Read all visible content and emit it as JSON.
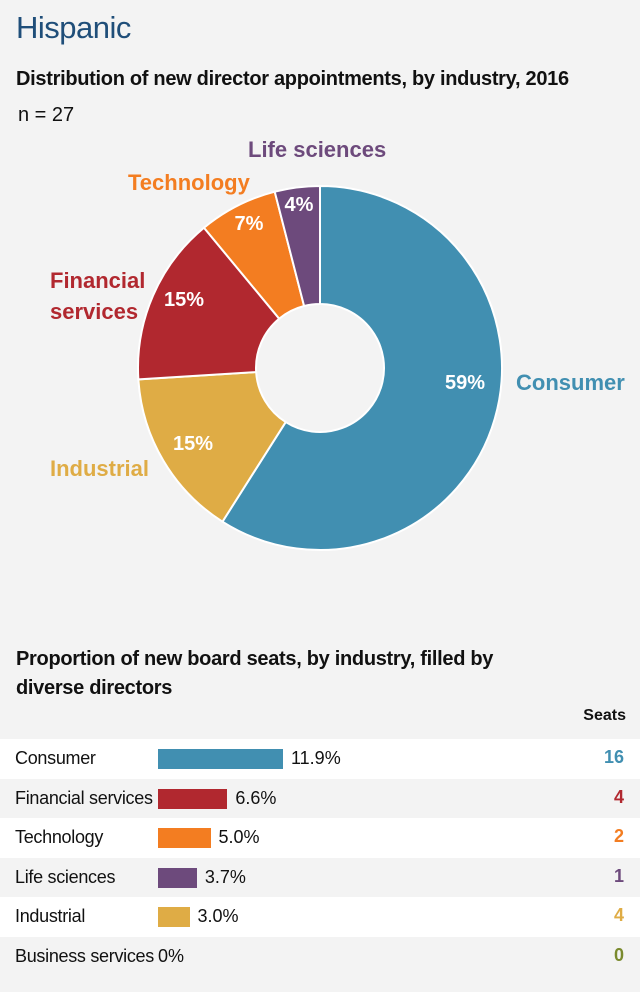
{
  "title": "Hispanic",
  "chart_data": [
    {
      "type": "pie",
      "title": "Distribution of new director appointments, by industry, 2016",
      "subtitle": "n = 27",
      "donut": true,
      "slices": [
        {
          "name": "Consumer",
          "value": 59,
          "label": "59%",
          "color": "#418fb1"
        },
        {
          "name": "Industrial",
          "value": 15,
          "label": "15%",
          "color": "#dfac45"
        },
        {
          "name": "Financial services",
          "value": 15,
          "label": "15%",
          "color": "#b1282f"
        },
        {
          "name": "Technology",
          "value": 7,
          "label": "7%",
          "color": "#f37d21"
        },
        {
          "name": "Life sciences",
          "value": 4,
          "label": "4%",
          "color": "#6d4a7c"
        }
      ]
    },
    {
      "type": "bar",
      "title": "Proportion of new board seats, by industry, filled by diverse directors",
      "seats_header": "Seats",
      "categories": [
        "Consumer",
        "Financial services",
        "Technology",
        "Life sciences",
        "Industrial",
        "Business services"
      ],
      "values": [
        11.9,
        6.6,
        5.0,
        3.7,
        3.0,
        0
      ],
      "labels": [
        "11.9%",
        "6.6%",
        "5.0%",
        "3.7%",
        "3.0%",
        "0%"
      ],
      "seats": [
        "16",
        "4",
        "2",
        "1",
        "4",
        "0"
      ],
      "colors": [
        "#418fb1",
        "#b1282f",
        "#f37d21",
        "#6d4a7c",
        "#dfac45",
        "#7a8a2e"
      ]
    }
  ]
}
